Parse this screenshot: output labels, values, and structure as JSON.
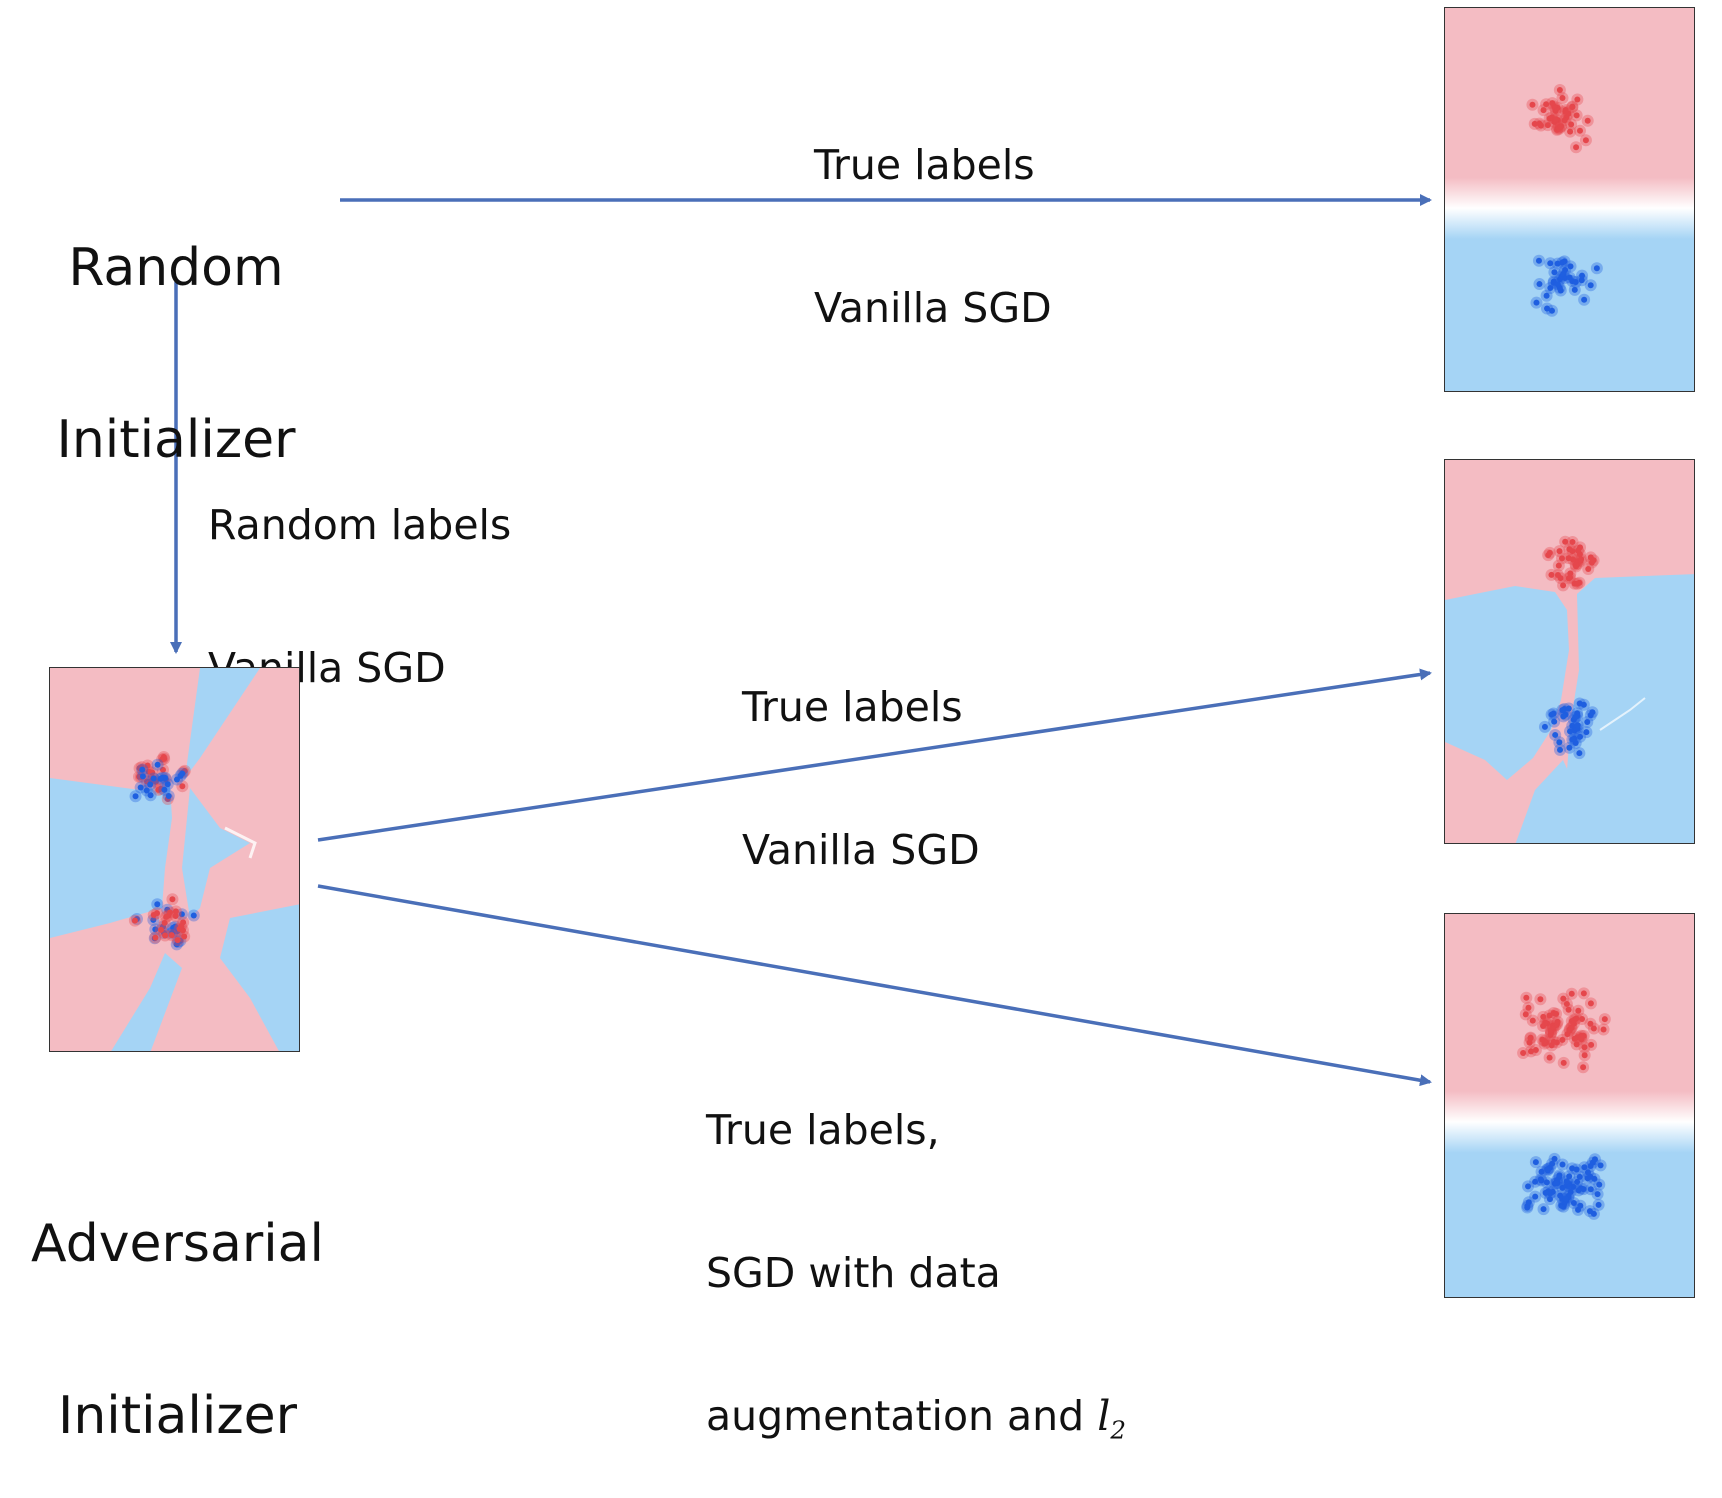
{
  "nodes": {
    "random_initializer": [
      "Random",
      "Initializer"
    ],
    "adversarial_initializer": [
      "Adversarial",
      "Initializer"
    ]
  },
  "edges": {
    "random_to_top": [
      "True labels",
      "Vanilla SGD"
    ],
    "random_to_adversarial": [
      "Random labels",
      "Vanilla SGD"
    ],
    "adversarial_to_middle": [
      "True labels",
      "Vanilla SGD"
    ],
    "adversarial_to_bottom": [
      "True labels,",
      "SGD with data",
      "augmentation and"
    ]
  },
  "math_symbol": {
    "base": "l",
    "subscript": "2"
  },
  "colors": {
    "arrow": "#4a6fb8",
    "red_region": "#f4bcc3",
    "blue_region": "#a5d4f5",
    "red_point": "#e5474c",
    "blue_point": "#1f5fe0"
  },
  "panels": [
    {
      "id": "top-result-panel",
      "boundary": "smooth-horizontal"
    },
    {
      "id": "middle-result-panel",
      "boundary": "irregular"
    },
    {
      "id": "bottom-result-panel",
      "boundary": "smooth-horizontal"
    },
    {
      "id": "adversarial-panel",
      "boundary": "highly-irregular"
    }
  ]
}
